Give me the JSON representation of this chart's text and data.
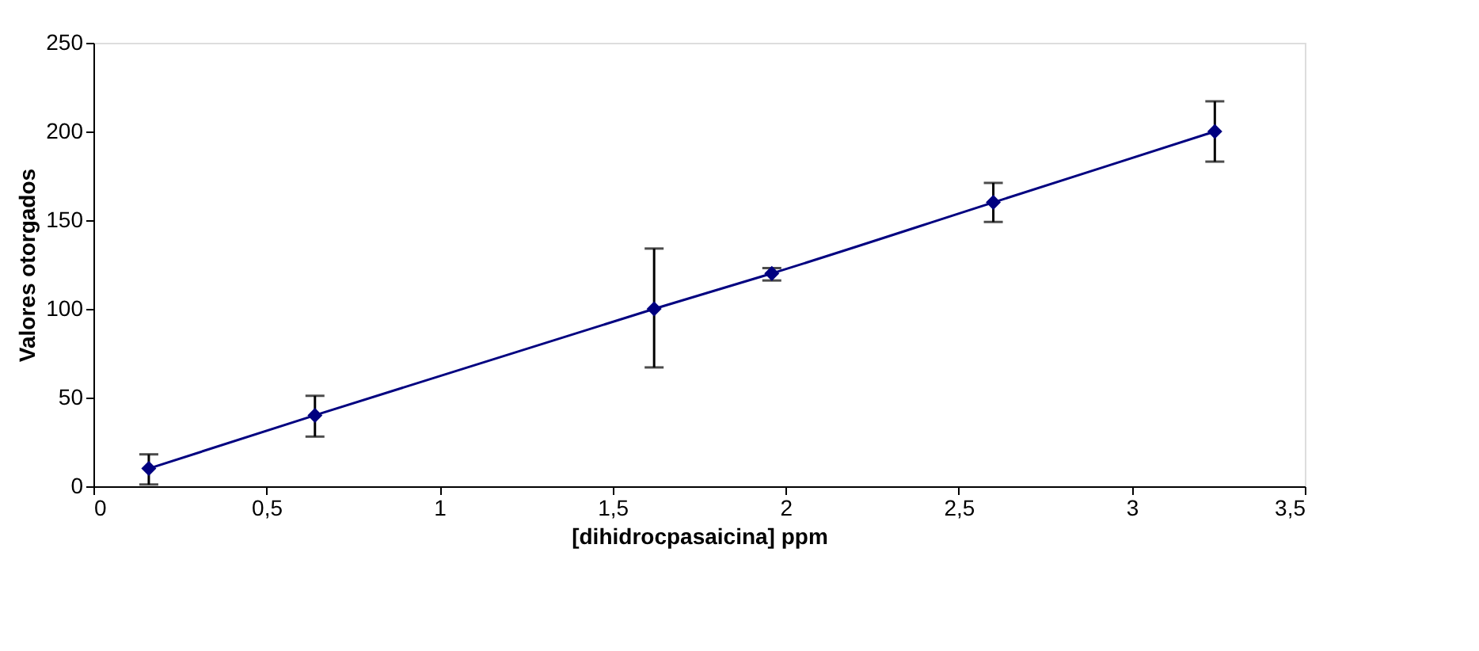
{
  "chart_data": {
    "type": "line",
    "xlabel": "[dihidrocpasaicina] ppm",
    "ylabel": "Valores otorgados",
    "x": [
      0.16,
      0.64,
      1.62,
      1.96,
      2.6,
      3.24
    ],
    "series": [
      {
        "color": "#000080",
        "values": [
          10,
          40,
          100,
          120,
          160,
          200
        ],
        "errors": [
          [
            1,
            18
          ],
          [
            28,
            51
          ],
          [
            67,
            134
          ],
          [
            116,
            123
          ],
          [
            149,
            171
          ],
          [
            183,
            217
          ]
        ]
      }
    ],
    "xlim": [
      0,
      3.5
    ],
    "xticks": [
      0,
      {
        "value": 0.5,
        "label": "0,5"
      },
      1,
      {
        "value": 1.5,
        "label": "1,5"
      },
      2,
      {
        "value": 2.5,
        "label": "2,5"
      },
      3,
      {
        "value": 3.5,
        "label": "3,5"
      }
    ],
    "ylim": [
      0,
      250
    ],
    "yticks": [
      0,
      50,
      100,
      150,
      200,
      250
    ],
    "marker": "diamond",
    "line_style": "solid",
    "grid": false
  }
}
